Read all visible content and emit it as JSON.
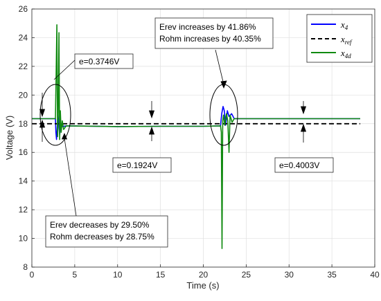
{
  "chart_data": {
    "type": "line",
    "title": "",
    "xlabel": "Time (s)",
    "ylabel": "Voltage (V)",
    "xlim": [
      0,
      40
    ],
    "ylim": [
      8,
      26
    ],
    "xticks": [
      "0",
      "5",
      "10",
      "15",
      "20",
      "25",
      "30",
      "35",
      "40"
    ],
    "yticks": [
      "8",
      "10",
      "12",
      "14",
      "16",
      "18",
      "20",
      "22",
      "24",
      "26"
    ],
    "grid": true,
    "legend_position": "top-right",
    "series": [
      {
        "name": "x_4",
        "color": "#0000ff",
        "style": "solid",
        "points": [
          [
            0,
            18.35
          ],
          [
            2.75,
            18.35
          ],
          [
            2.8,
            17.4
          ],
          [
            2.88,
            16.9
          ],
          [
            2.95,
            17.6
          ],
          [
            3.05,
            18.7
          ],
          [
            3.15,
            17.9
          ],
          [
            3.25,
            17.2
          ],
          [
            3.35,
            18.1
          ],
          [
            3.5,
            17.8
          ],
          [
            4,
            17.85
          ],
          [
            10,
            17.8
          ],
          [
            15,
            17.82
          ],
          [
            20,
            17.82
          ],
          [
            22.0,
            17.85
          ],
          [
            22.15,
            18.7
          ],
          [
            22.3,
            19.2
          ],
          [
            22.45,
            18.9
          ],
          [
            22.6,
            17.9
          ],
          [
            22.8,
            18.9
          ],
          [
            23.0,
            18.5
          ],
          [
            23.3,
            18.7
          ],
          [
            23.6,
            18.35
          ],
          [
            30,
            18.35
          ],
          [
            38.3,
            18.35
          ]
        ]
      },
      {
        "name": "x_ref",
        "color": "#000000",
        "style": "dashed",
        "points": [
          [
            0,
            18
          ],
          [
            38.3,
            18
          ]
        ]
      },
      {
        "name": "x_4d",
        "color": "#108a10",
        "style": "solid",
        "points": [
          [
            0,
            18.35
          ],
          [
            2.75,
            18.35
          ],
          [
            2.82,
            21.0
          ],
          [
            2.92,
            24.9
          ],
          [
            3.0,
            17.1
          ],
          [
            3.08,
            18.8
          ],
          [
            3.16,
            24.35
          ],
          [
            3.24,
            16.9
          ],
          [
            3.32,
            18.9
          ],
          [
            3.42,
            17.4
          ],
          [
            3.55,
            18.2
          ],
          [
            3.7,
            17.6
          ],
          [
            4,
            17.85
          ],
          [
            10,
            17.8
          ],
          [
            15,
            17.82
          ],
          [
            20,
            17.82
          ],
          [
            22.0,
            17.85
          ],
          [
            22.1,
            17.4
          ],
          [
            22.18,
            9.3
          ],
          [
            22.26,
            18.2
          ],
          [
            22.36,
            18.6
          ],
          [
            22.5,
            17.9
          ],
          [
            22.7,
            18.7
          ],
          [
            22.85,
            18.2
          ],
          [
            23.0,
            16.0
          ],
          [
            23.12,
            18.6
          ],
          [
            23.35,
            18.1
          ],
          [
            23.6,
            18.35
          ],
          [
            30,
            18.35
          ],
          [
            38.3,
            18.35
          ]
        ]
      }
    ],
    "legend": [
      {
        "base": "x",
        "sub": "4"
      },
      {
        "base": "x",
        "sub": "ref"
      },
      {
        "base": "x",
        "sub": "4d"
      }
    ],
    "annotations": {
      "e1": "e=0.3746V",
      "e2": "e=0.1924V",
      "e3": "e=0.4003V",
      "box_top_line1": "Erev increases by 41.86%",
      "box_top_line2": "Rohm increases by 40.35%",
      "box_bottom_line1": "Erev decreases by 29.50%",
      "box_bottom_line2": "Rohm decreases by 28.75%"
    }
  }
}
